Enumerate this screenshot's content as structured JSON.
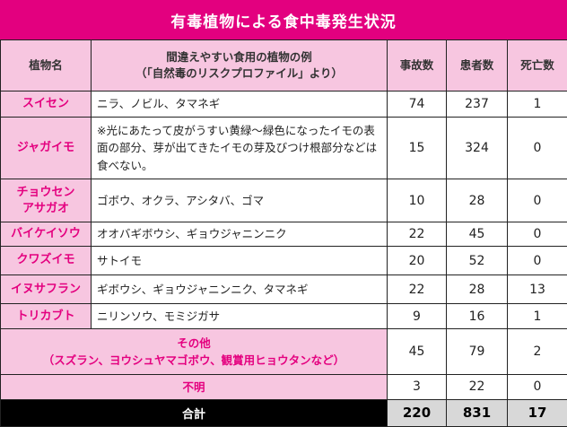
{
  "title": "有毒植物による食中毒発生状況",
  "headers": {
    "name": "植物名",
    "example_line1": "間違えやすい食用の植物の例",
    "example_line2": "（「自然毒のリスクプロファイル」より）",
    "incidents": "事故数",
    "patients": "患者数",
    "deaths": "死亡数"
  },
  "rows": [
    {
      "name_line1": "スイセン",
      "name_line2": "",
      "example": "ニラ、ノビル、タマネギ",
      "incidents": "74",
      "patients": "237",
      "deaths": "1"
    },
    {
      "name_line1": "ジャガイモ",
      "name_line2": "",
      "example": "※光にあたって皮がうすい黄緑～緑色になったイモの表面の部分、芽が出てきたイモの芽及びつけ根部分などは食べない。",
      "incidents": "15",
      "patients": "324",
      "deaths": "0"
    },
    {
      "name_line1": "チョウセン",
      "name_line2": "アサガオ",
      "example": "ゴボウ、オクラ、アシタバ、ゴマ",
      "incidents": "10",
      "patients": "28",
      "deaths": "0"
    },
    {
      "name_line1": "バイケイソウ",
      "name_line2": "",
      "example": "オオバギボウシ、ギョウジャニンニク",
      "incidents": "22",
      "patients": "45",
      "deaths": "0"
    },
    {
      "name_line1": "クワズイモ",
      "name_line2": "",
      "example": "サトイモ",
      "incidents": "20",
      "patients": "52",
      "deaths": "0"
    },
    {
      "name_line1": "イヌサフラン",
      "name_line2": "",
      "example": "ギボウシ、ギョウジャニンニク、タマネギ",
      "incidents": "22",
      "patients": "28",
      "deaths": "13"
    },
    {
      "name_line1": "トリカブト",
      "name_line2": "",
      "example": "ニリンソウ、モミジガサ",
      "incidents": "9",
      "patients": "16",
      "deaths": "1"
    }
  ],
  "other": {
    "label_line1": "その他",
    "label_line2": "（スズラン、ヨウシュヤマゴボウ、観賞用ヒョウタンなど）",
    "incidents": "45",
    "patients": "79",
    "deaths": "2"
  },
  "unknown": {
    "label": "不明",
    "incidents": "3",
    "patients": "22",
    "deaths": "0"
  },
  "total": {
    "label": "合計",
    "incidents": "220",
    "patients": "831",
    "deaths": "17"
  },
  "colors": {
    "accent": "#e3007f",
    "header_bg": "#f7c6e0",
    "total_bg": "#000000",
    "total_num_bg": "#d8d8d8"
  }
}
